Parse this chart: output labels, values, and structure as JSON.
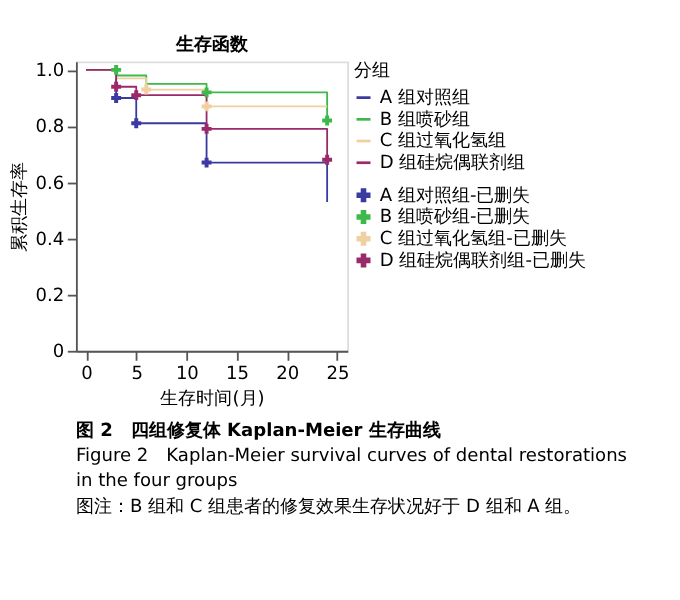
{
  "chart_data": {
    "type": "step",
    "title": "生存函数",
    "xlabel": "生存时间(月)",
    "ylabel": "累积生存率",
    "legend_title": "分组",
    "xlim": [
      -1,
      26
    ],
    "xticks": [
      0,
      5,
      10,
      15,
      20,
      25
    ],
    "ylim": [
      0,
      1.03
    ],
    "yticks": [
      0,
      0.2,
      0.4,
      0.6,
      {
        "value": 0.8,
        "label": "0.8"
      },
      {
        "value": 1.0,
        "label": "1.0"
      }
    ],
    "grid": false,
    "legend": "right",
    "series": [
      {
        "name": "A 组对照组",
        "color": "#3a3aa0",
        "type": "step",
        "x": [
          0,
          3,
          5,
          12,
          24
        ],
        "values": [
          1.0,
          0.9,
          0.81,
          0.67,
          0.53
        ]
      },
      {
        "name": "B 组喷砂组",
        "color": "#3cb94a",
        "type": "step",
        "x": [
          0,
          3,
          6,
          12,
          24
        ],
        "values": [
          1.0,
          0.98,
          0.95,
          0.92,
          0.82
        ]
      },
      {
        "name": "C 组过氧化氢组",
        "color": "#f0d0a0",
        "type": "step",
        "x": [
          0,
          3,
          6,
          12,
          24
        ],
        "values": [
          1.0,
          0.97,
          0.93,
          0.87,
          0.87
        ]
      },
      {
        "name": "D 组硅烷偶联剂组",
        "color": "#9a2a6a",
        "type": "step",
        "x": [
          0,
          3,
          5,
          12,
          24
        ],
        "values": [
          1.0,
          0.94,
          0.91,
          0.79,
          0.68
        ]
      },
      {
        "name": "A 组对照组-已删失",
        "color": "#3a3aa0",
        "type": "scatter",
        "marker": "cross",
        "x": [
          3,
          5,
          12
        ],
        "values": [
          0.9,
          0.81,
          0.67
        ]
      },
      {
        "name": "B 组喷砂组-已删失",
        "color": "#3cb94a",
        "type": "scatter",
        "marker": "cross",
        "x": [
          3,
          12,
          24
        ],
        "values": [
          1.0,
          0.92,
          0.82
        ]
      },
      {
        "name": "C 组过氧化氢组-已删失",
        "color": "#f0d0a0",
        "type": "scatter",
        "marker": "cross",
        "x": [
          6,
          12
        ],
        "values": [
          0.93,
          0.87
        ]
      },
      {
        "name": "D 组硅烷偶联剂组-已删失",
        "color": "#9a2a6a",
        "type": "scatter",
        "marker": "cross",
        "x": [
          3,
          5,
          12,
          24
        ],
        "values": [
          0.94,
          0.91,
          0.79,
          0.68
        ]
      }
    ],
    "annotations": [
      "图 2　四组修复体 Kaplan-Meier 生存曲线",
      "Figure 2　Kaplan-Meier survival curves of dental restorations in the four groups",
      "图注：B 组和 C 组患者的修复效果生存状况好于 D 组和 A 组。"
    ]
  }
}
